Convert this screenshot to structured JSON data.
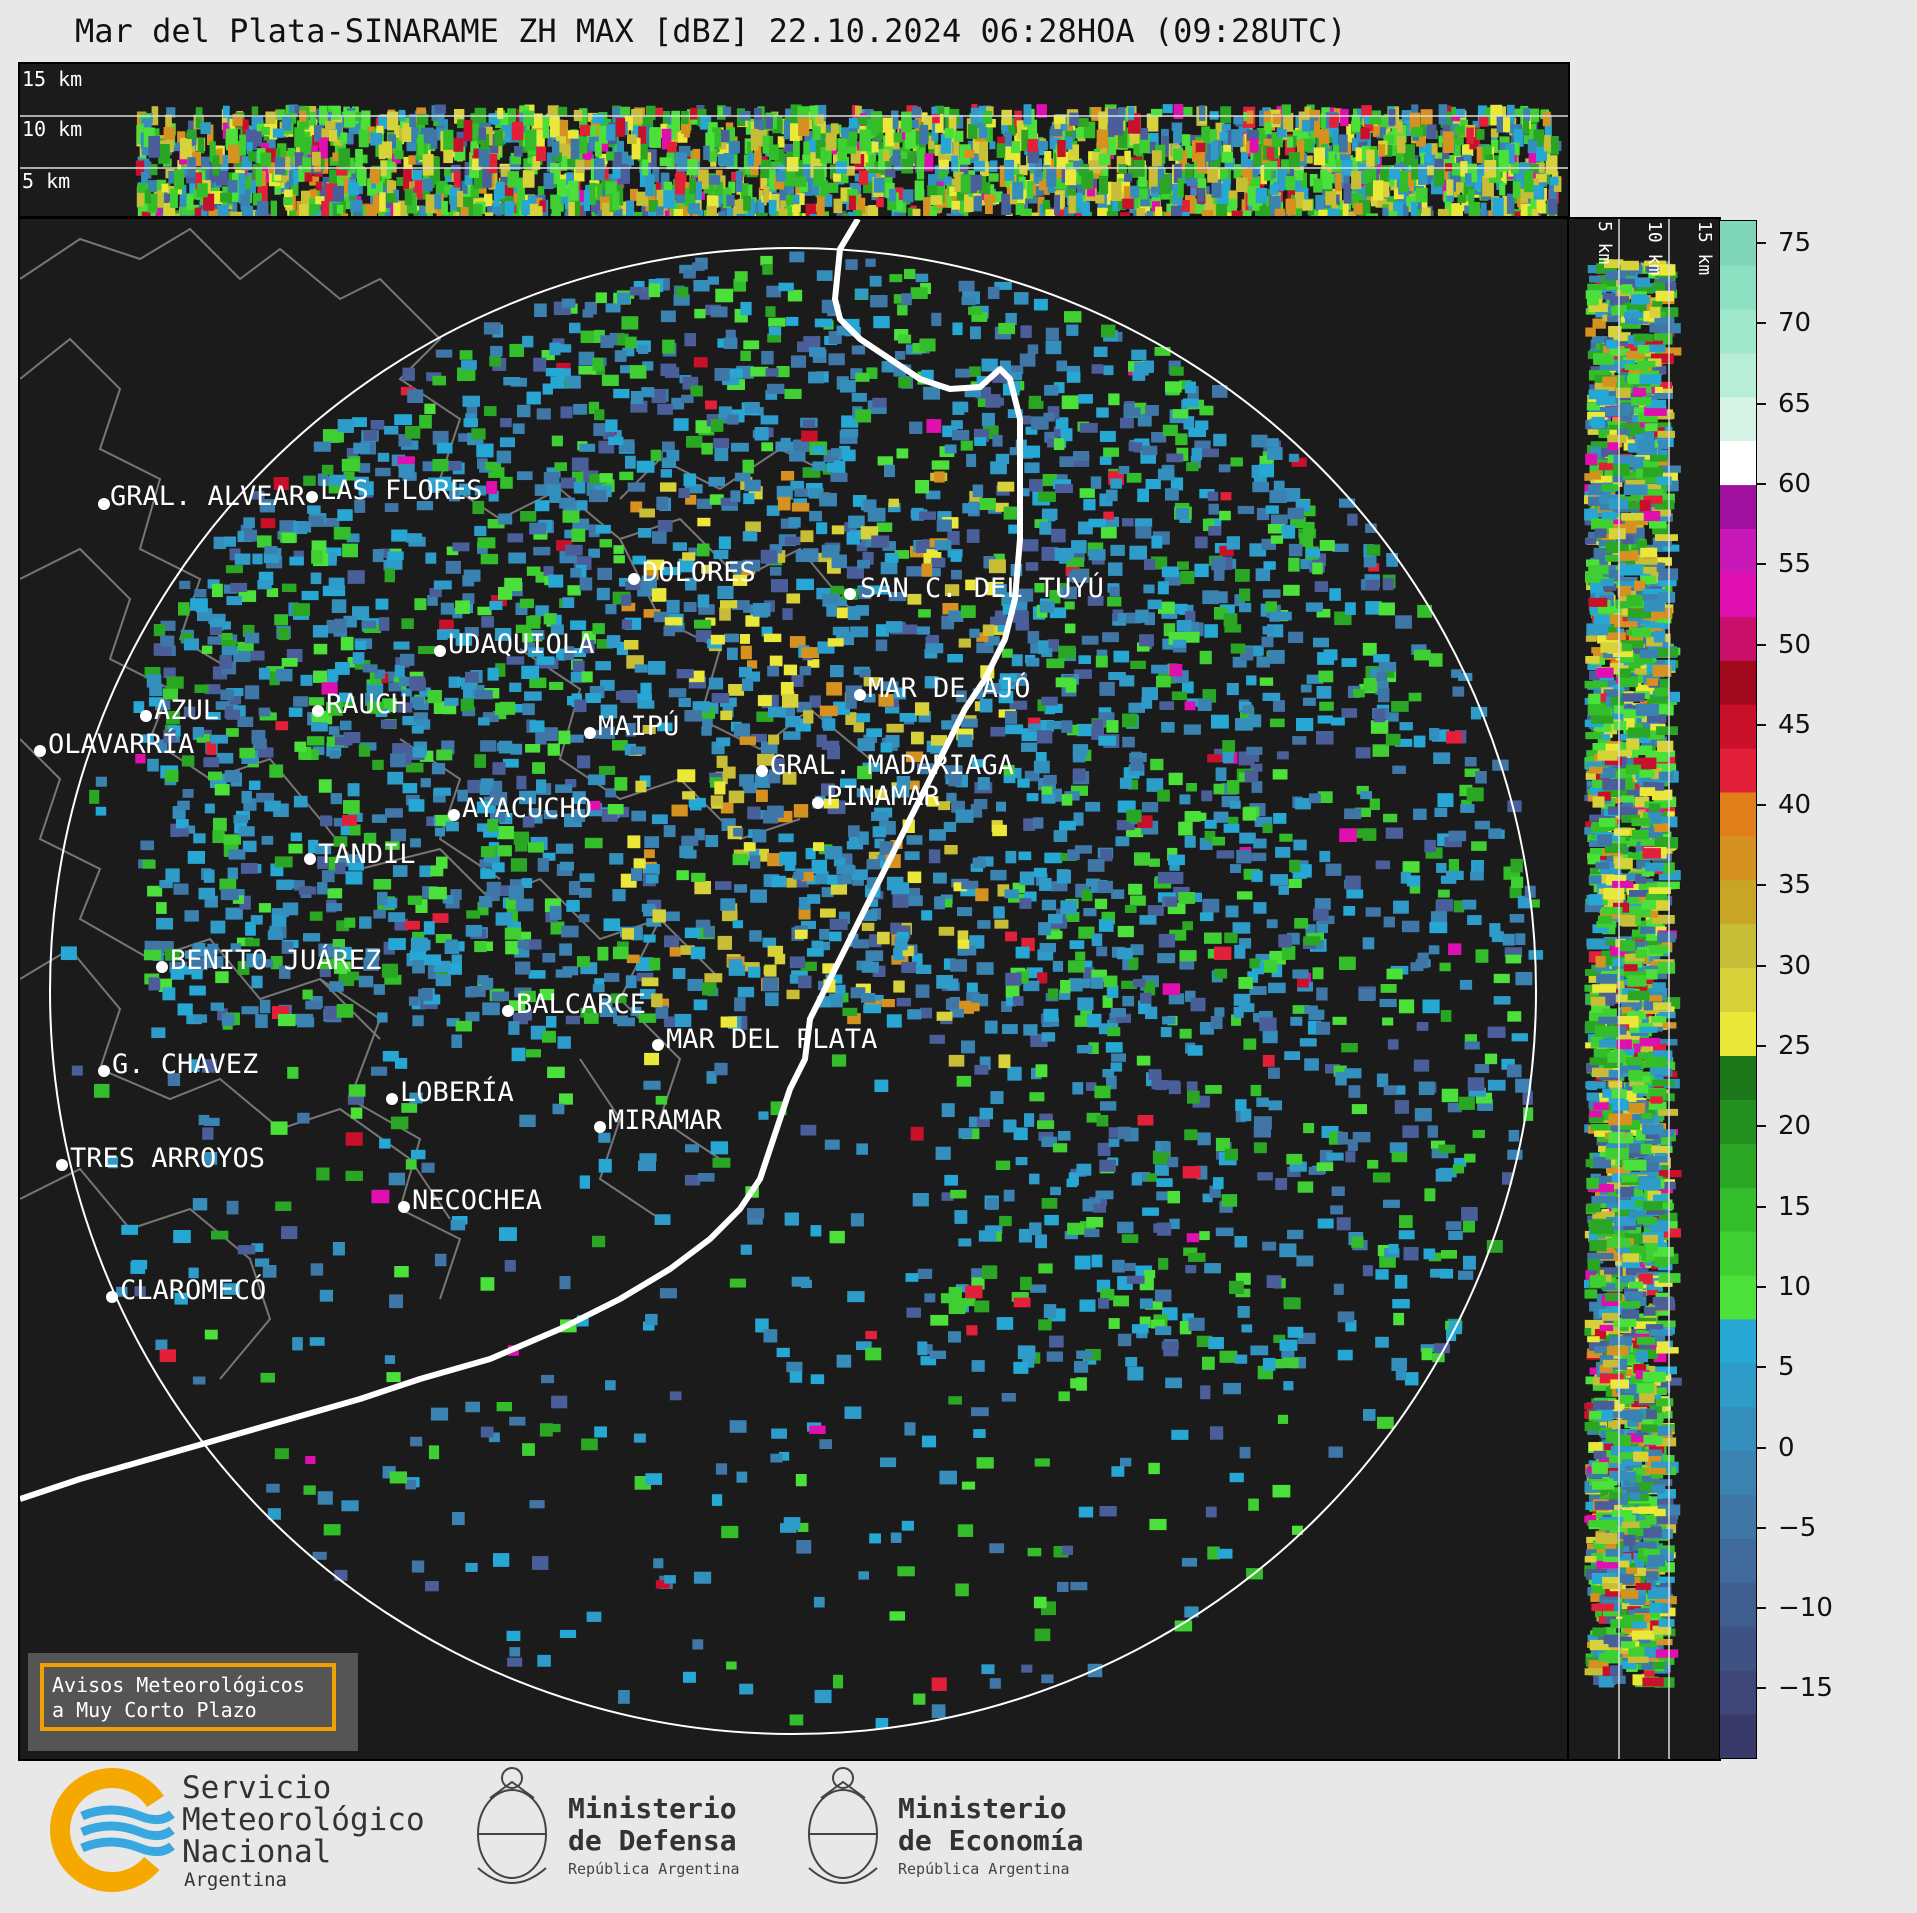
{
  "title": "Mar del Plata-SINARAME ZH MAX [dBZ] 22.10.2024 06:28HOA (09:28UTC)",
  "top_panel": {
    "levels": [
      "15 km",
      "10 km",
      "5 km"
    ]
  },
  "side_panel": {
    "levels": [
      "5 km",
      "10 km",
      "15 km"
    ]
  },
  "cities": [
    {
      "name": "GRAL. ALVEAR"
    },
    {
      "name": "LAS FLORES"
    },
    {
      "name": "DOLORES"
    },
    {
      "name": "SAN C. DEL TUYÚ"
    },
    {
      "name": "UDAQUIOLA"
    },
    {
      "name": "MAR DE AJÓ"
    },
    {
      "name": "AZUL"
    },
    {
      "name": "RAUCH"
    },
    {
      "name": "OLAVARRÍA"
    },
    {
      "name": "MAIPÚ"
    },
    {
      "name": "GRAL. MADARIAGA"
    },
    {
      "name": "PINAMAR"
    },
    {
      "name": "AYACUCHO"
    },
    {
      "name": "TANDIL"
    },
    {
      "name": "BENITO JUÁREZ"
    },
    {
      "name": "BALCARCE"
    },
    {
      "name": "MAR DEL PLATA"
    },
    {
      "name": "G. CHAVEZ"
    },
    {
      "name": "LOBERÍA"
    },
    {
      "name": "MIRAMAR"
    },
    {
      "name": "TRES ARROYOS"
    },
    {
      "name": "NECOCHEA"
    },
    {
      "name": "CLAROMECÓ"
    }
  ],
  "colorbar": {
    "ticks": [
      "75",
      "70",
      "65",
      "60",
      "55",
      "50",
      "45",
      "40",
      "35",
      "30",
      "25",
      "20",
      "15",
      "10",
      "5",
      "0",
      "−5",
      "−10",
      "−15"
    ],
    "colors": [
      "#3a3a6a",
      "#3d4677",
      "#3e5283",
      "#3f5e8f",
      "#3f6a9b",
      "#3f76a6",
      "#3a83b1",
      "#358fbc",
      "#2e9bc8",
      "#27a7d3",
      "#4ce03a",
      "#3fcf32",
      "#33bd2a",
      "#2aa624",
      "#238f1e",
      "#1c781a",
      "#ebe83a",
      "#d8d23a",
      "#c7bd36",
      "#c9a526",
      "#d69221",
      "#e07f1a",
      "#e3203a",
      "#c8102a",
      "#a0081c",
      "#c8106a",
      "#e010b0",
      "#c818b8",
      "#a010a0",
      "#ffffff",
      "#d6f3e6",
      "#b8eed8",
      "#a0e8cc",
      "#8ee0c2",
      "#7fd6b8"
    ]
  },
  "warning_box": {
    "line1": "Avisos Meteorológicos",
    "line2": "a Muy Corto Plazo"
  },
  "logos": {
    "smn": {
      "line1": "Servicio",
      "line2": "Meteorológico",
      "line3": "Nacional",
      "line4": "Argentina"
    },
    "defensa": {
      "line1": "Ministerio",
      "line2": "de Defensa",
      "line3": "República Argentina"
    },
    "economia": {
      "line1": "Ministerio",
      "line2": "de Economía",
      "line3": "República Argentina"
    }
  }
}
